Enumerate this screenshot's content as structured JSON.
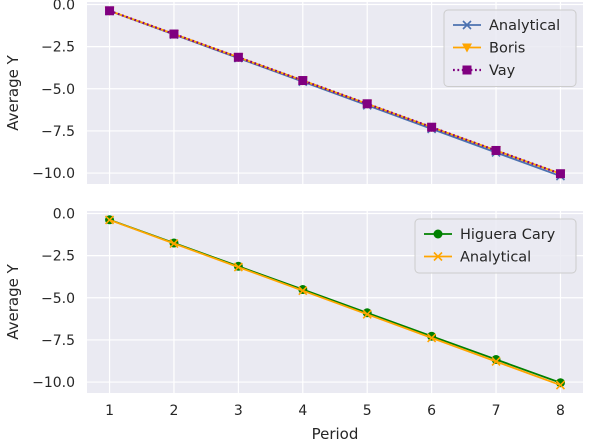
{
  "chart_data": [
    {
      "type": "line",
      "title": "",
      "xlabel": "",
      "ylabel": "Average Y",
      "x": [
        1,
        2,
        3,
        4,
        5,
        6,
        7,
        8
      ],
      "xlim": [
        0.65,
        8.35
      ],
      "ylim": [
        -10.65,
        0.15
      ],
      "yticks": [
        0.0,
        -2.5,
        -5.0,
        -7.5,
        -10.0
      ],
      "ytick_labels": [
        "0.0",
        "−2.5",
        "−5.0",
        "−7.5",
        "−10.0"
      ],
      "grid": true,
      "legend_position": "top-right",
      "series": [
        {
          "name": "Analytical",
          "color": "#4c72b0",
          "marker": "x",
          "linestyle": "solid",
          "values": [
            -0.38,
            -1.78,
            -3.18,
            -4.58,
            -5.98,
            -7.38,
            -8.78,
            -10.18
          ]
        },
        {
          "name": "Boris",
          "color": "#ffa500",
          "marker": "triangle-down",
          "linestyle": "solid",
          "values": [
            -0.37,
            -1.75,
            -3.13,
            -4.51,
            -5.89,
            -7.28,
            -8.66,
            -10.04
          ]
        },
        {
          "name": "Vay",
          "color": "#800080",
          "marker": "square",
          "linestyle": "dotted",
          "values": [
            -0.37,
            -1.75,
            -3.13,
            -4.51,
            -5.89,
            -7.28,
            -8.66,
            -10.04
          ]
        }
      ]
    },
    {
      "type": "line",
      "title": "",
      "xlabel": "Period",
      "ylabel": "Average Y",
      "x": [
        1,
        2,
        3,
        4,
        5,
        6,
        7,
        8
      ],
      "xtick_labels": [
        "1",
        "2",
        "3",
        "4",
        "5",
        "6",
        "7",
        "8"
      ],
      "xlim": [
        0.65,
        8.35
      ],
      "ylim": [
        -10.65,
        0.15
      ],
      "yticks": [
        0.0,
        -2.5,
        -5.0,
        -7.5,
        -10.0
      ],
      "ytick_labels": [
        "0.0",
        "−2.5",
        "−5.0",
        "−7.5",
        "−10.0"
      ],
      "grid": true,
      "legend_position": "top-right",
      "series": [
        {
          "name": "Higuera Cary",
          "color": "#008000",
          "marker": "circle",
          "linestyle": "solid",
          "values": [
            -0.37,
            -1.75,
            -3.13,
            -4.51,
            -5.89,
            -7.28,
            -8.66,
            -10.04
          ]
        },
        {
          "name": "Analytical",
          "color": "#ffa500",
          "marker": "x",
          "linestyle": "solid",
          "values": [
            -0.38,
            -1.78,
            -3.18,
            -4.58,
            -5.98,
            -7.38,
            -8.78,
            -10.18
          ]
        }
      ]
    }
  ]
}
